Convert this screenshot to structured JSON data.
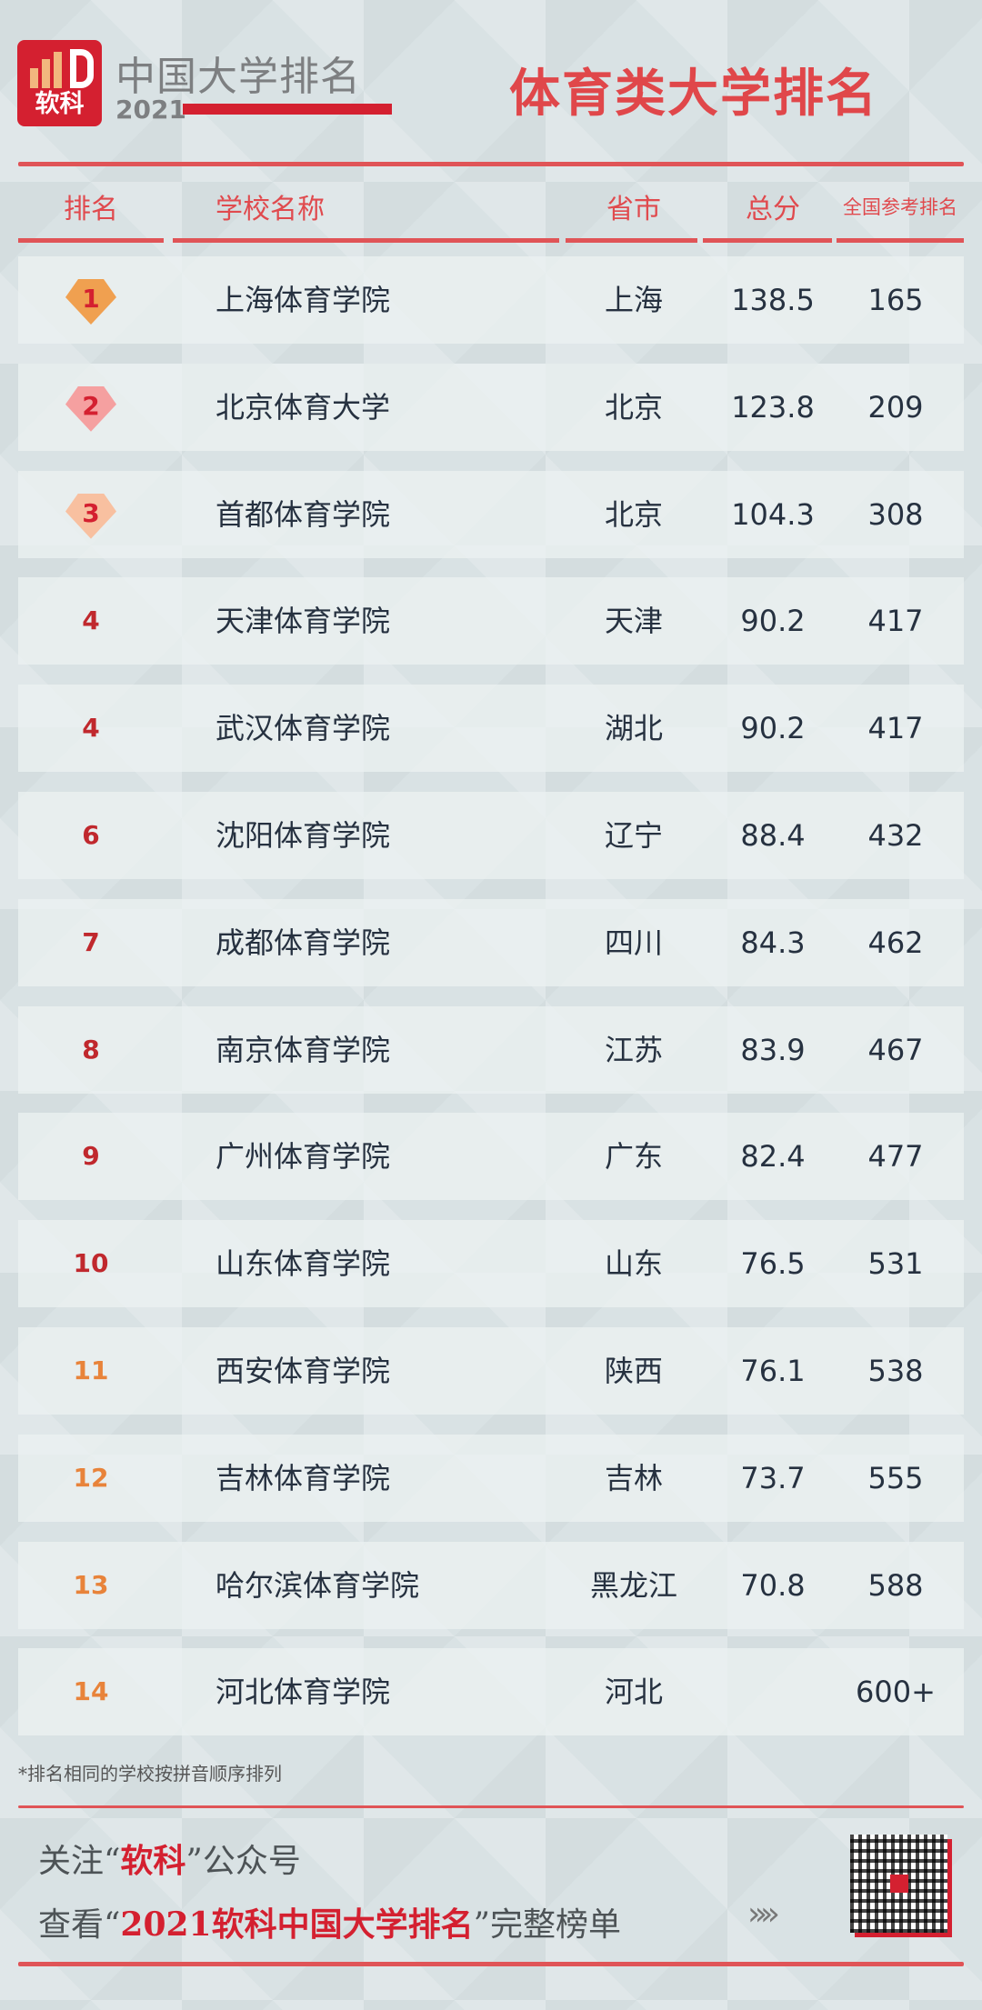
{
  "header": {
    "logo_text": "软科",
    "brand": "中国大学排名",
    "year": "2021",
    "title": "体育类大学排名"
  },
  "columns": [
    "排名",
    "学校名称",
    "省市",
    "总分",
    "全国参考排名"
  ],
  "rows": [
    {
      "rank": "1",
      "name": "上海体育学院",
      "province": "上海",
      "score": "138.5",
      "national": "165"
    },
    {
      "rank": "2",
      "name": "北京体育大学",
      "province": "北京",
      "score": "123.8",
      "national": "209"
    },
    {
      "rank": "3",
      "name": "首都体育学院",
      "province": "北京",
      "score": "104.3",
      "national": "308"
    },
    {
      "rank": "4",
      "name": "天津体育学院",
      "province": "天津",
      "score": "90.2",
      "national": "417"
    },
    {
      "rank": "4",
      "name": "武汉体育学院",
      "province": "湖北",
      "score": "90.2",
      "national": "417"
    },
    {
      "rank": "6",
      "name": "沈阳体育学院",
      "province": "辽宁",
      "score": "88.4",
      "national": "432"
    },
    {
      "rank": "7",
      "name": "成都体育学院",
      "province": "四川",
      "score": "84.3",
      "national": "462"
    },
    {
      "rank": "8",
      "name": "南京体育学院",
      "province": "江苏",
      "score": "83.9",
      "national": "467"
    },
    {
      "rank": "9",
      "name": "广州体育学院",
      "province": "广东",
      "score": "82.4",
      "national": "477"
    },
    {
      "rank": "10",
      "name": "山东体育学院",
      "province": "山东",
      "score": "76.5",
      "national": "531"
    },
    {
      "rank": "11",
      "name": "西安体育学院",
      "province": "陕西",
      "score": "76.1",
      "national": "538"
    },
    {
      "rank": "12",
      "name": "吉林体育学院",
      "province": "吉林",
      "score": "73.7",
      "national": "555"
    },
    {
      "rank": "13",
      "name": "哈尔滨体育学院",
      "province": "黑龙江",
      "score": "70.8",
      "national": "588"
    },
    {
      "rank": "14",
      "name": "河北体育学院",
      "province": "河北",
      "score": "",
      "national": "600+"
    }
  ],
  "colors": {
    "accent": "#e05457",
    "rank_top10": "#c0282d",
    "rank_rest": "#e8833a",
    "gem1": "#f0a050",
    "gem2": "#f5a0a0",
    "gem3": "#f8c0a0"
  },
  "footer": {
    "note": "*排名相同的学校按拼音顺序排列",
    "line1": {
      "a": "关注“",
      "b": "软科",
      "c": "”公众号"
    },
    "line2": {
      "a": "查看“",
      "b": "2021软科中国大学排名",
      "c": "”完整榜单"
    },
    "arrows": "»»"
  }
}
